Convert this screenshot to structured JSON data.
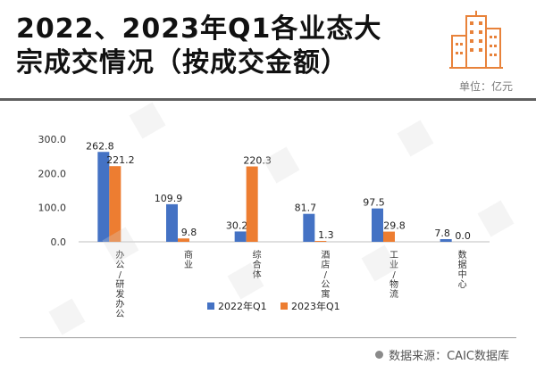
{
  "header": {
    "title_line1": "2022、2023年Q1各业态大",
    "title_line2": "宗成交情况（按成交金额）",
    "unit": "单位：亿元",
    "icon": "building-icon",
    "accent_color": "#e8823a"
  },
  "footer": {
    "source": "数据来源：CAIC数据库"
  },
  "chart_data": {
    "type": "bar",
    "title": "2022、2023年Q1各业态大宗成交情况（按成交金额）",
    "unit": "单位：亿元",
    "categories": [
      "办公/研发办公",
      "商业",
      "综合体",
      "酒店/公寓",
      "工业/物流",
      "数据中心"
    ],
    "series": [
      {
        "name": "2022年Q1",
        "color": "#4472c4",
        "values": [
          262.8,
          109.9,
          30.2,
          81.7,
          97.5,
          7.8
        ]
      },
      {
        "name": "2023年Q1",
        "color": "#ed7d31",
        "values": [
          221.2,
          9.8,
          220.3,
          1.3,
          29.8,
          0.0
        ]
      }
    ],
    "value_labels": [
      [
        "262.8",
        "109.9",
        "30.2",
        "81.7",
        "97.5",
        "7.8"
      ],
      [
        "221.2",
        "9.8",
        "220.3",
        "1.3",
        "29.8",
        "0.0"
      ]
    ],
    "yticks": [
      "0.0",
      "100.0",
      "200.0",
      "300.0"
    ],
    "ylim": [
      0,
      300
    ],
    "grid": false,
    "legend_position": "bottom"
  }
}
